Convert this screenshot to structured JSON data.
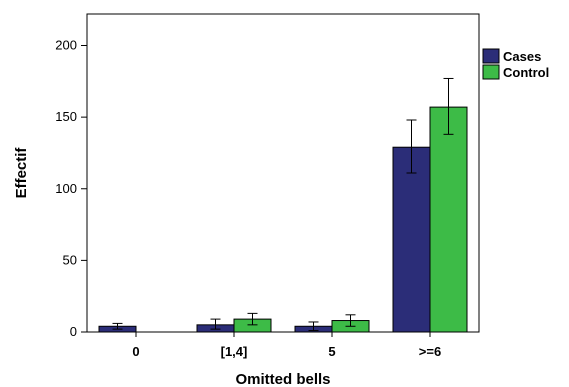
{
  "chart_data": {
    "type": "bar",
    "categories": [
      "0",
      "[1,4]",
      "5",
      ">=6"
    ],
    "series": [
      {
        "name": "Cases",
        "color": "#2b2d78",
        "values": [
          4,
          5,
          4,
          129
        ],
        "error_low": [
          2,
          2,
          1,
          111
        ],
        "error_high": [
          6,
          9,
          7,
          148
        ]
      },
      {
        "name": "Control",
        "color": "#3dbb47",
        "values": [
          0,
          9,
          8,
          157
        ],
        "error_low": [
          null,
          5,
          4,
          138
        ],
        "error_high": [
          null,
          13,
          12,
          177
        ]
      }
    ],
    "yticks": [
      0,
      50,
      100,
      150,
      200
    ],
    "ylim": [
      0,
      222
    ],
    "xlabel": "Omitted bells",
    "ylabel": "Effectif",
    "legend_position": "right",
    "grid": false
  }
}
